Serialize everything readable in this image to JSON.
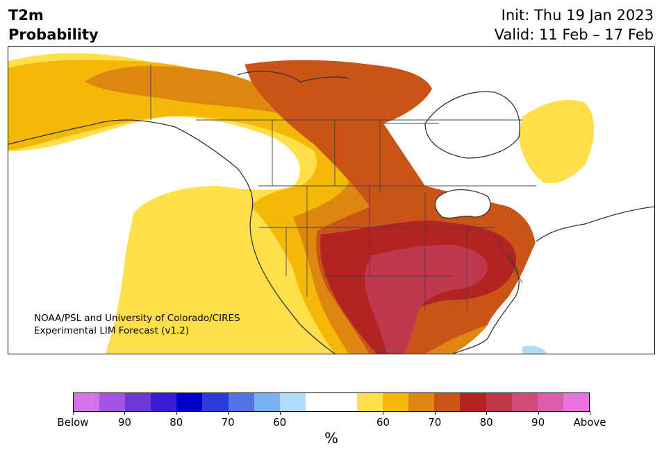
{
  "header": {
    "variable": "T2m",
    "product": "Probability",
    "init": "Init: Thu 19 Jan 2023",
    "valid": "Valid: 11 Feb – 17 Feb"
  },
  "credit": {
    "line1": "NOAA/PSL and University of Colorado/CIRES",
    "line2": "Experimental LIM Forecast (v1.2)"
  },
  "colorbar": {
    "unit": "%",
    "colors": [
      "#d572e8",
      "#a155e2",
      "#6a39d8",
      "#3a1cd6",
      "#0000cc",
      "#2b3bda",
      "#5173e6",
      "#79b1f2",
      "#aedcfa",
      "#ffffff",
      "#ffffff",
      "#ffe04a",
      "#f3b808",
      "#de8610",
      "#c95418",
      "#b52222",
      "#c0384e",
      "#cf4b7c",
      "#dc5ea8",
      "#e972de"
    ],
    "ticks": [
      {
        "label": "Below",
        "frac": 0.0
      },
      {
        "label": "90",
        "frac": 0.1
      },
      {
        "label": "80",
        "frac": 0.2
      },
      {
        "label": "70",
        "frac": 0.3
      },
      {
        "label": "60",
        "frac": 0.4
      },
      {
        "label": "60",
        "frac": 0.6
      },
      {
        "label": "70",
        "frac": 0.7
      },
      {
        "label": "80",
        "frac": 0.8
      },
      {
        "label": "90",
        "frac": 0.9
      },
      {
        "label": "Above",
        "frac": 1.0
      }
    ]
  }
}
